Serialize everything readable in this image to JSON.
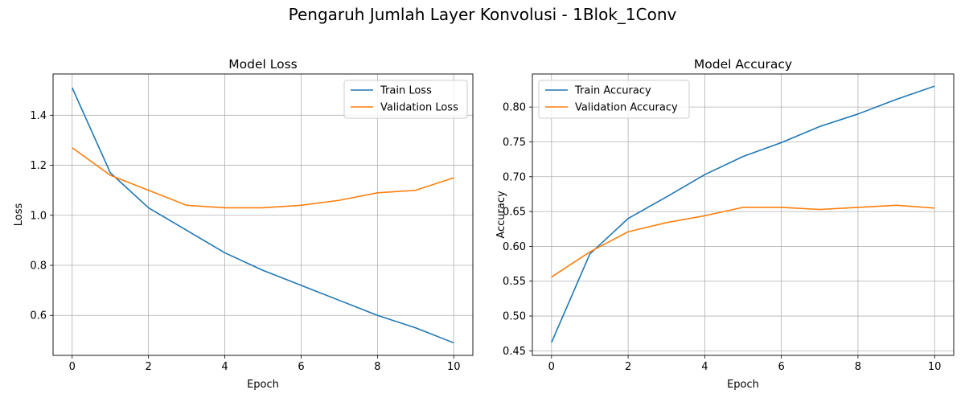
{
  "suptitle": "Pengaruh Jumlah Layer Konvolusi - 1Blok_1Conv",
  "colors": {
    "train": "#1f77b4",
    "validation": "#ff7f0e",
    "grid": "#b0b0b0",
    "axis": "#000000"
  },
  "chart_data": [
    {
      "type": "line",
      "title": "Model Loss",
      "xlabel": "Epoch",
      "ylabel": "Loss",
      "grid": true,
      "legend_position": "top-right",
      "xlim": [
        -0.5,
        10.5
      ],
      "ylim": [
        0.44,
        1.565
      ],
      "xticks": [
        0,
        2,
        4,
        6,
        8,
        10
      ],
      "yticks": [
        0.6,
        0.8,
        1.0,
        1.2,
        1.4
      ],
      "ytick_labels": [
        "0.6",
        "0.8",
        "1.0",
        "1.2",
        "1.4"
      ],
      "x": [
        0,
        1,
        2,
        3,
        4,
        5,
        6,
        7,
        8,
        9,
        10
      ],
      "series": [
        {
          "name": "Train Loss",
          "color": "#1f77b4",
          "values": [
            1.51,
            1.17,
            1.03,
            0.94,
            0.85,
            0.78,
            0.72,
            0.66,
            0.6,
            0.55,
            0.49
          ]
        },
        {
          "name": "Validation Loss",
          "color": "#ff7f0e",
          "values": [
            1.27,
            1.16,
            1.1,
            1.04,
            1.03,
            1.03,
            1.04,
            1.06,
            1.09,
            1.1,
            1.15
          ]
        }
      ]
    },
    {
      "type": "line",
      "title": "Model Accuracy",
      "xlabel": "Epoch",
      "ylabel": "Accuracy",
      "grid": true,
      "legend_position": "top-left",
      "xlim": [
        -0.5,
        10.5
      ],
      "ylim": [
        0.4435,
        0.8475
      ],
      "xticks": [
        0,
        2,
        4,
        6,
        8,
        10
      ],
      "yticks": [
        0.45,
        0.5,
        0.55,
        0.6,
        0.65,
        0.7,
        0.75,
        0.8
      ],
      "ytick_labels": [
        "0.45",
        "0.50",
        "0.55",
        "0.60",
        "0.65",
        "0.70",
        "0.75",
        "0.80"
      ],
      "x": [
        0,
        1,
        2,
        3,
        4,
        5,
        6,
        7,
        8,
        9,
        10
      ],
      "series": [
        {
          "name": "Train Accuracy",
          "color": "#1f77b4",
          "values": [
            0.462,
            0.589,
            0.64,
            0.671,
            0.703,
            0.729,
            0.749,
            0.772,
            0.79,
            0.811,
            0.83
          ]
        },
        {
          "name": "Validation Accuracy",
          "color": "#ff7f0e",
          "values": [
            0.556,
            0.592,
            0.621,
            0.634,
            0.644,
            0.656,
            0.656,
            0.653,
            0.656,
            0.659,
            0.655
          ]
        }
      ]
    }
  ]
}
